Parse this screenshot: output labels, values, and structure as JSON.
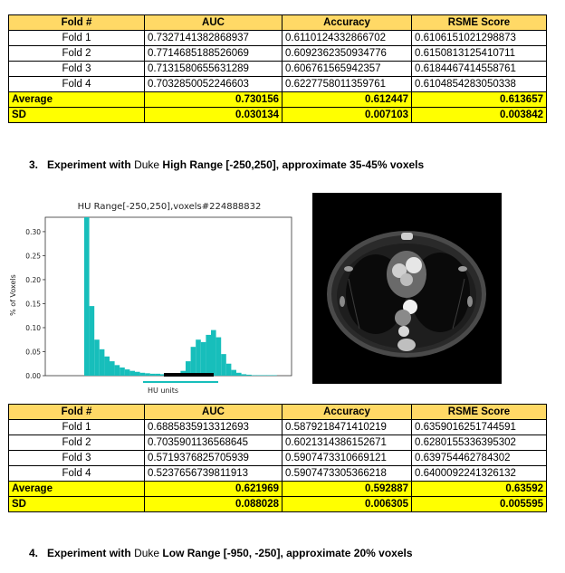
{
  "table1": {
    "headers": [
      "Fold #",
      "AUC",
      "Accuracy",
      "RSME Score"
    ],
    "rows": [
      [
        "Fold 1",
        "0.7327141382868937",
        "0.6110124332866702",
        "0.6106151021298873"
      ],
      [
        "Fold 2",
        "0.7714685188526069",
        "0.6092362350934776",
        "0.6150813125410711"
      ],
      [
        "Fold 3",
        "0.7131580655631289",
        "0.606761565942357",
        "0.6184467414558761"
      ],
      [
        "Fold 4",
        "0.7032850052246603",
        "0.6227758011359761",
        "0.6104854283050338"
      ]
    ],
    "average": {
      "label": "Average",
      "auc": "0.730156",
      "accuracy": "0.612447",
      "rsme": "0.613657"
    },
    "sd": {
      "label": "SD",
      "auc": "0.030134",
      "accuracy": "0.007103",
      "rsme": "0.003842"
    }
  },
  "section3": {
    "number": "3.",
    "bold_a": "Experiment with ",
    "light": "Duke",
    "bold_b": " High Range [-250,250], approximate 35-45% voxels"
  },
  "chart_data": {
    "type": "bar",
    "title": "HU Range[-250,250],voxels#224888832",
    "xlabel": "HU units",
    "ylabel": "% of Voxels",
    "ylim": [
      0,
      0.33
    ],
    "yticks": [
      "0.00",
      "0.05",
      "0.10",
      "0.15",
      "0.20",
      "0.25",
      "0.30"
    ],
    "values": [
      0.33,
      0.145,
      0.075,
      0.055,
      0.04,
      0.03,
      0.022,
      0.017,
      0.013,
      0.01,
      0.008,
      0.006,
      0.005,
      0.004,
      0.004,
      0.003,
      0.003,
      0.002,
      0.005,
      0.01,
      0.03,
      0.06,
      0.075,
      0.07,
      0.085,
      0.095,
      0.08,
      0.045,
      0.025,
      0.012,
      0.006,
      0.003,
      0.002,
      0.001,
      0.001,
      0.001,
      0.001,
      0.001
    ],
    "bar_color": "#17bebb"
  },
  "ct_image": {
    "description": ""
  },
  "table2": {
    "headers": [
      "Fold #",
      "AUC",
      "Accuracy",
      "RSME Score"
    ],
    "rows": [
      [
        "Fold 1",
        "0.6885835913312693",
        "0.5879218471410219",
        "0.6359016251744591"
      ],
      [
        "Fold 2",
        "0.7035901136568645",
        "0.6021314386152671",
        "0.6280155336395302"
      ],
      [
        "Fold 3",
        "0.5719376825705939",
        "0.5907473310669121",
        "0.639754462784302"
      ],
      [
        "Fold 4",
        "0.5237656739811913",
        "0.5907473305366218",
        "0.6400092241326132"
      ]
    ],
    "average": {
      "label": "Average",
      "auc": "0.621969",
      "accuracy": "0.592887",
      "rsme": "0.63592"
    },
    "sd": {
      "label": "SD",
      "auc": "0.088028",
      "accuracy": "0.006305",
      "rsme": "0.005595"
    }
  },
  "section4": {
    "number": "4.",
    "bold_a": "Experiment with ",
    "light": "Duke",
    "bold_b": " Low Range [-950, -250], approximate 20% voxels"
  }
}
